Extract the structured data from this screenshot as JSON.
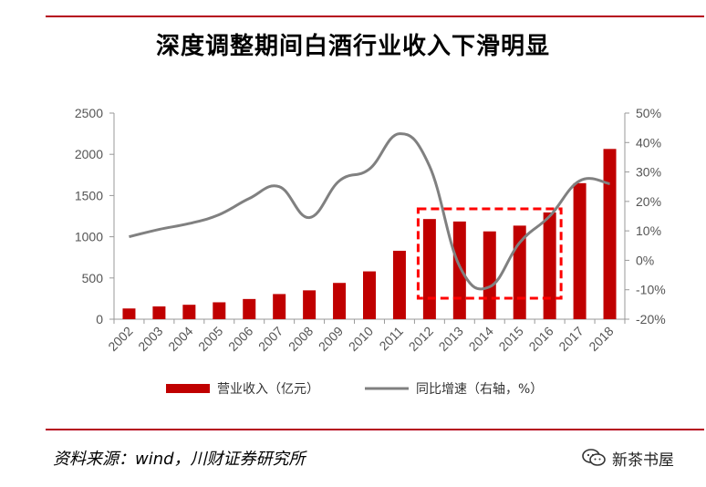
{
  "header": {
    "title": "深度调整期间白酒行业收入下滑明显"
  },
  "footer": {
    "source": "资料来源：wind，川财证券研究所",
    "watermark": "新茶书屋"
  },
  "colors": {
    "rule": "#b5001c",
    "bar": "#c00000",
    "line": "#808080",
    "highlight_box": "#ff0000"
  },
  "chart_data": {
    "type": "bar",
    "categories": [
      "2002",
      "2003",
      "2004",
      "2005",
      "2006",
      "2007",
      "2008",
      "2009",
      "2010",
      "2011",
      "2012",
      "2013",
      "2014",
      "2015",
      "2016",
      "2017",
      "2018"
    ],
    "series": [
      {
        "name": "营业收入（亿元）",
        "type": "bar",
        "axis": "left",
        "values": [
          130,
          155,
          175,
          205,
          245,
          305,
          350,
          440,
          580,
          830,
          1215,
          1185,
          1065,
          1135,
          1295,
          1650,
          2065
        ]
      },
      {
        "name": "同比增速（右轴，%）",
        "type": "line",
        "axis": "right",
        "values": [
          8,
          10.5,
          12.5,
          15.5,
          21,
          25,
          14.5,
          27,
          31,
          43,
          32,
          -2,
          -9,
          6,
          15,
          27,
          26
        ]
      }
    ],
    "left_axis": {
      "ylim": [
        0,
        2500
      ],
      "ticks": [
        "0",
        "500",
        "1000",
        "1500",
        "2000",
        "2500"
      ]
    },
    "right_axis": {
      "ylim": [
        -20,
        50
      ],
      "ticks": [
        "-20%",
        "-10%",
        "0%",
        "10%",
        "20%",
        "30%",
        "40%",
        "50%"
      ]
    },
    "highlight": {
      "from": "2012",
      "to": "2016"
    },
    "legend_position": "bottom",
    "grid": false
  }
}
